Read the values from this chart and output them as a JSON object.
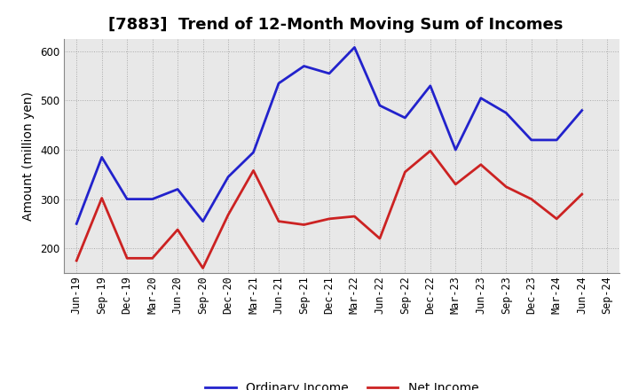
{
  "title": "[7883]  Trend of 12-Month Moving Sum of Incomes",
  "ylabel": "Amount (million yen)",
  "x_labels": [
    "Jun-19",
    "Sep-19",
    "Dec-19",
    "Mar-20",
    "Jun-20",
    "Sep-20",
    "Dec-20",
    "Mar-21",
    "Jun-21",
    "Sep-21",
    "Dec-21",
    "Mar-22",
    "Jun-22",
    "Sep-22",
    "Dec-22",
    "Mar-23",
    "Jun-23",
    "Sep-23",
    "Dec-23",
    "Mar-24",
    "Jun-24",
    "Sep-24"
  ],
  "ordinary_income": [
    250,
    385,
    300,
    300,
    320,
    255,
    345,
    395,
    535,
    570,
    555,
    608,
    490,
    465,
    530,
    400,
    505,
    475,
    420,
    420,
    480,
    null
  ],
  "net_income": [
    175,
    302,
    180,
    180,
    238,
    160,
    268,
    358,
    255,
    248,
    260,
    265,
    220,
    355,
    398,
    330,
    370,
    325,
    300,
    260,
    310,
    null
  ],
  "ordinary_income_color": "#2222CC",
  "net_income_color": "#CC2222",
  "ylim": [
    150,
    625
  ],
  "yticks": [
    200,
    300,
    400,
    500,
    600
  ],
  "grid_color": "#999999",
  "plot_bg_color": "#e8e8e8",
  "fig_bg_color": "#ffffff",
  "legend_labels": [
    "Ordinary Income",
    "Net Income"
  ],
  "title_fontsize": 13,
  "ylabel_fontsize": 10,
  "tick_fontsize": 8.5,
  "legend_fontsize": 10,
  "linewidth": 2.0
}
